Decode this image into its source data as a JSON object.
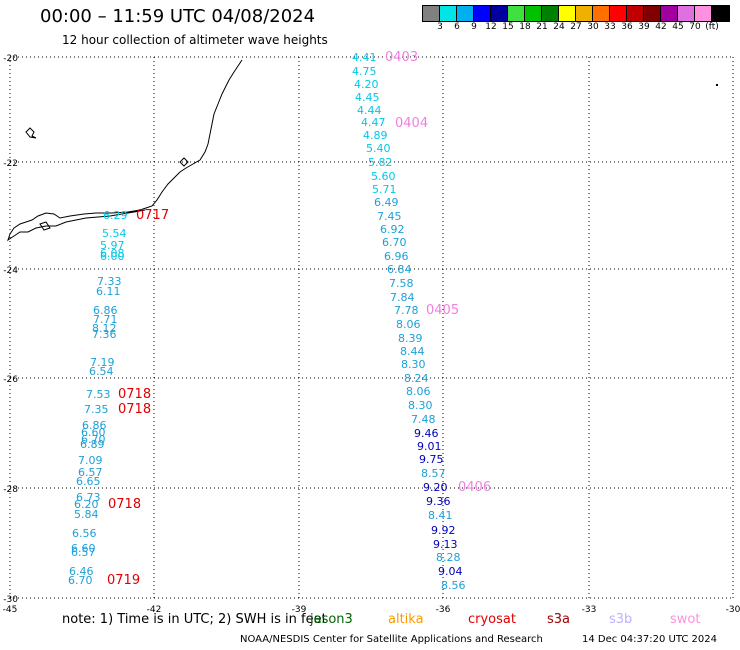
{
  "header": {
    "title": "00:00 – 11:59 UTC 04/08/2024",
    "subtitle": "12 hour collection of altimeter wave heights"
  },
  "colorbar": {
    "colors": [
      "#808080",
      "#00e5e5",
      "#00b0ee",
      "#0000ff",
      "#0000a0",
      "#40e040",
      "#00c000",
      "#008000",
      "#ffff00",
      "#f0b000",
      "#ff7000",
      "#ff0000",
      "#c00000",
      "#800000",
      "#a000a0",
      "#e070e0",
      "#ff90e0",
      "#000000"
    ],
    "labels": [
      "3",
      "6",
      "9",
      "12",
      "15",
      "18",
      "21",
      "24",
      "27",
      "30",
      "33",
      "36",
      "39",
      "42",
      "45",
      "70",
      "(ft)"
    ]
  },
  "map_axes": {
    "lon_labels": [
      "-45",
      "-42",
      "-39",
      "-36",
      "-33",
      "-30"
    ],
    "lat_labels": [
      "-20",
      "-22",
      "-24",
      "-26",
      "-28",
      "-30"
    ]
  },
  "tracks": {
    "colors": {
      "cyan": "#00c8e8",
      "sky": "#1ea0d8",
      "navy": "#0000b8",
      "pink": "#f080e0",
      "red": "#e00000"
    },
    "labels": [
      {
        "t": "4.41",
        "c": "cyan"
      },
      {
        "t": "0403",
        "c": "pink"
      },
      {
        "t": "4.75",
        "c": "cyan"
      },
      {
        "t": "4.20",
        "c": "cyan"
      },
      {
        "t": "4.45",
        "c": "cyan"
      },
      {
        "t": "4.44",
        "c": "cyan"
      },
      {
        "t": "4.47",
        "c": "cyan"
      },
      {
        "t": "0404",
        "c": "pink"
      },
      {
        "t": "4.89",
        "c": "cyan"
      },
      {
        "t": "5.40",
        "c": "cyan"
      },
      {
        "t": "5.82",
        "c": "cyan"
      },
      {
        "t": "5.60",
        "c": "cyan"
      },
      {
        "t": "5.71",
        "c": "cyan"
      },
      {
        "t": "6.49",
        "c": "sky"
      },
      {
        "t": "7.45",
        "c": "sky"
      },
      {
        "t": "6.92",
        "c": "sky"
      },
      {
        "t": "6.70",
        "c": "sky"
      },
      {
        "t": "6.96",
        "c": "sky"
      },
      {
        "t": "6.84",
        "c": "sky"
      },
      {
        "t": "7.58",
        "c": "sky"
      },
      {
        "t": "7.84",
        "c": "sky"
      },
      {
        "t": "7.78",
        "c": "sky"
      },
      {
        "t": "0405",
        "c": "pink"
      },
      {
        "t": "8.06",
        "c": "sky"
      },
      {
        "t": "8.39",
        "c": "sky"
      },
      {
        "t": "8.44",
        "c": "sky"
      },
      {
        "t": "8.30",
        "c": "sky"
      },
      {
        "t": "8.24",
        "c": "sky"
      },
      {
        "t": "8.06",
        "c": "sky"
      },
      {
        "t": "8.30",
        "c": "sky"
      },
      {
        "t": "7.48",
        "c": "sky"
      },
      {
        "t": "9.46",
        "c": "navy"
      },
      {
        "t": "9.01",
        "c": "navy"
      },
      {
        "t": "9.75",
        "c": "navy"
      },
      {
        "t": "8.57",
        "c": "sky"
      },
      {
        "t": "9.20",
        "c": "navy"
      },
      {
        "t": "0406",
        "c": "pink"
      },
      {
        "t": "9.36",
        "c": "navy"
      },
      {
        "t": "8.41",
        "c": "sky"
      },
      {
        "t": "9.92",
        "c": "navy"
      },
      {
        "t": "9.13",
        "c": "navy"
      },
      {
        "t": "8.28",
        "c": "sky"
      },
      {
        "t": "9.04",
        "c": "navy"
      },
      {
        "t": "8.56",
        "c": "sky"
      },
      {
        "t": "6.29",
        "c": "cyan"
      },
      {
        "t": "0717",
        "c": "red"
      },
      {
        "t": "5.54",
        "c": "cyan"
      },
      {
        "t": "5.97",
        "c": "cyan"
      },
      {
        "t": "6.08",
        "c": "cyan"
      },
      {
        "t": "6.00",
        "c": "cyan"
      },
      {
        "t": "7.33",
        "c": "sky"
      },
      {
        "t": "6.11",
        "c": "sky"
      },
      {
        "t": "6.86",
        "c": "sky"
      },
      {
        "t": "7.71",
        "c": "sky"
      },
      {
        "t": "8.12",
        "c": "sky"
      },
      {
        "t": "7.36",
        "c": "sky"
      },
      {
        "t": "7.19",
        "c": "sky"
      },
      {
        "t": "6.54",
        "c": "sky"
      },
      {
        "t": "7.53",
        "c": "sky"
      },
      {
        "t": "0718",
        "c": "red"
      },
      {
        "t": "7.35",
        "c": "sky"
      },
      {
        "t": "0718",
        "c": "red"
      },
      {
        "t": "6.86",
        "c": "sky"
      },
      {
        "t": "6.60",
        "c": "sky"
      },
      {
        "t": "6.70",
        "c": "sky"
      },
      {
        "t": "6.89",
        "c": "sky"
      },
      {
        "t": "7.09",
        "c": "sky"
      },
      {
        "t": "6.57",
        "c": "sky"
      },
      {
        "t": "6.65",
        "c": "sky"
      },
      {
        "t": "6.73",
        "c": "sky"
      },
      {
        "t": "6.20",
        "c": "sky"
      },
      {
        "t": "0718",
        "c": "red"
      },
      {
        "t": "5.84",
        "c": "sky"
      },
      {
        "t": "6.56",
        "c": "sky"
      },
      {
        "t": "6.60",
        "c": "sky"
      },
      {
        "t": "6.57",
        "c": "sky"
      },
      {
        "t": "6.46",
        "c": "sky"
      },
      {
        "t": "6.70",
        "c": "sky"
      },
      {
        "t": "0719",
        "c": "red"
      }
    ]
  },
  "legend": {
    "note": "note:  1) Time is in UTC;  2) SWH is in feet",
    "satellites": [
      {
        "name": "jason3",
        "color": "#006400"
      },
      {
        "name": "altika",
        "color": "#ff9900"
      },
      {
        "name": "cryosat",
        "color": "#e00000"
      },
      {
        "name": "s3a",
        "color": "#a00000"
      },
      {
        "name": "s3b",
        "color": "#c0b0ff"
      },
      {
        "name": "swot",
        "color": "#ff90e0"
      }
    ]
  },
  "footer": {
    "credit": "NOAA/NESDIS Center for Satellite Applications and Research",
    "timestamp": "14 Dec 04:37:20 UTC 2024"
  }
}
